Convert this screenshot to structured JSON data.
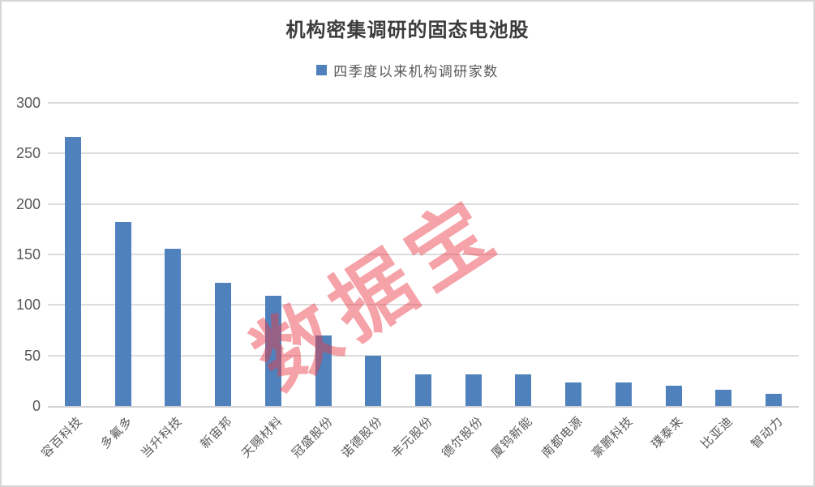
{
  "title": "机构密集调研的固态电池股",
  "legend": {
    "label": "四季度以来机构调研家数",
    "marker_color": "#4F81BD"
  },
  "watermark": {
    "text": "数据宝",
    "color": "rgba(234,59,71,0.47)"
  },
  "colors": {
    "bar": "#4F81BD",
    "gridline": "#dcdcdc",
    "axis_text": "#595959",
    "title_text": "#3c3c3c"
  },
  "chart_data": {
    "type": "bar",
    "title": "机构密集调研的固态电池股",
    "legend_entries": [
      "四季度以来机构调研家数"
    ],
    "legend_position": "top",
    "categories": [
      "容百科技",
      "多氟多",
      "当升科技",
      "新宙邦",
      "天赐材料",
      "冠盛股份",
      "诺德股份",
      "丰元股份",
      "德尔股份",
      "厦钨新能",
      "南都电源",
      "豪鹏科技",
      "璞泰来",
      "比亚迪",
      "智动力"
    ],
    "values": [
      266,
      182,
      156,
      122,
      109,
      70,
      50,
      31,
      31,
      31,
      23,
      23,
      20,
      16,
      12
    ],
    "xlabel": "",
    "ylabel": "",
    "ylim": [
      0,
      300
    ],
    "yticks": [
      0,
      50,
      100,
      150,
      200,
      250,
      300
    ],
    "grid": true,
    "bar_color": "#4F81BD"
  }
}
